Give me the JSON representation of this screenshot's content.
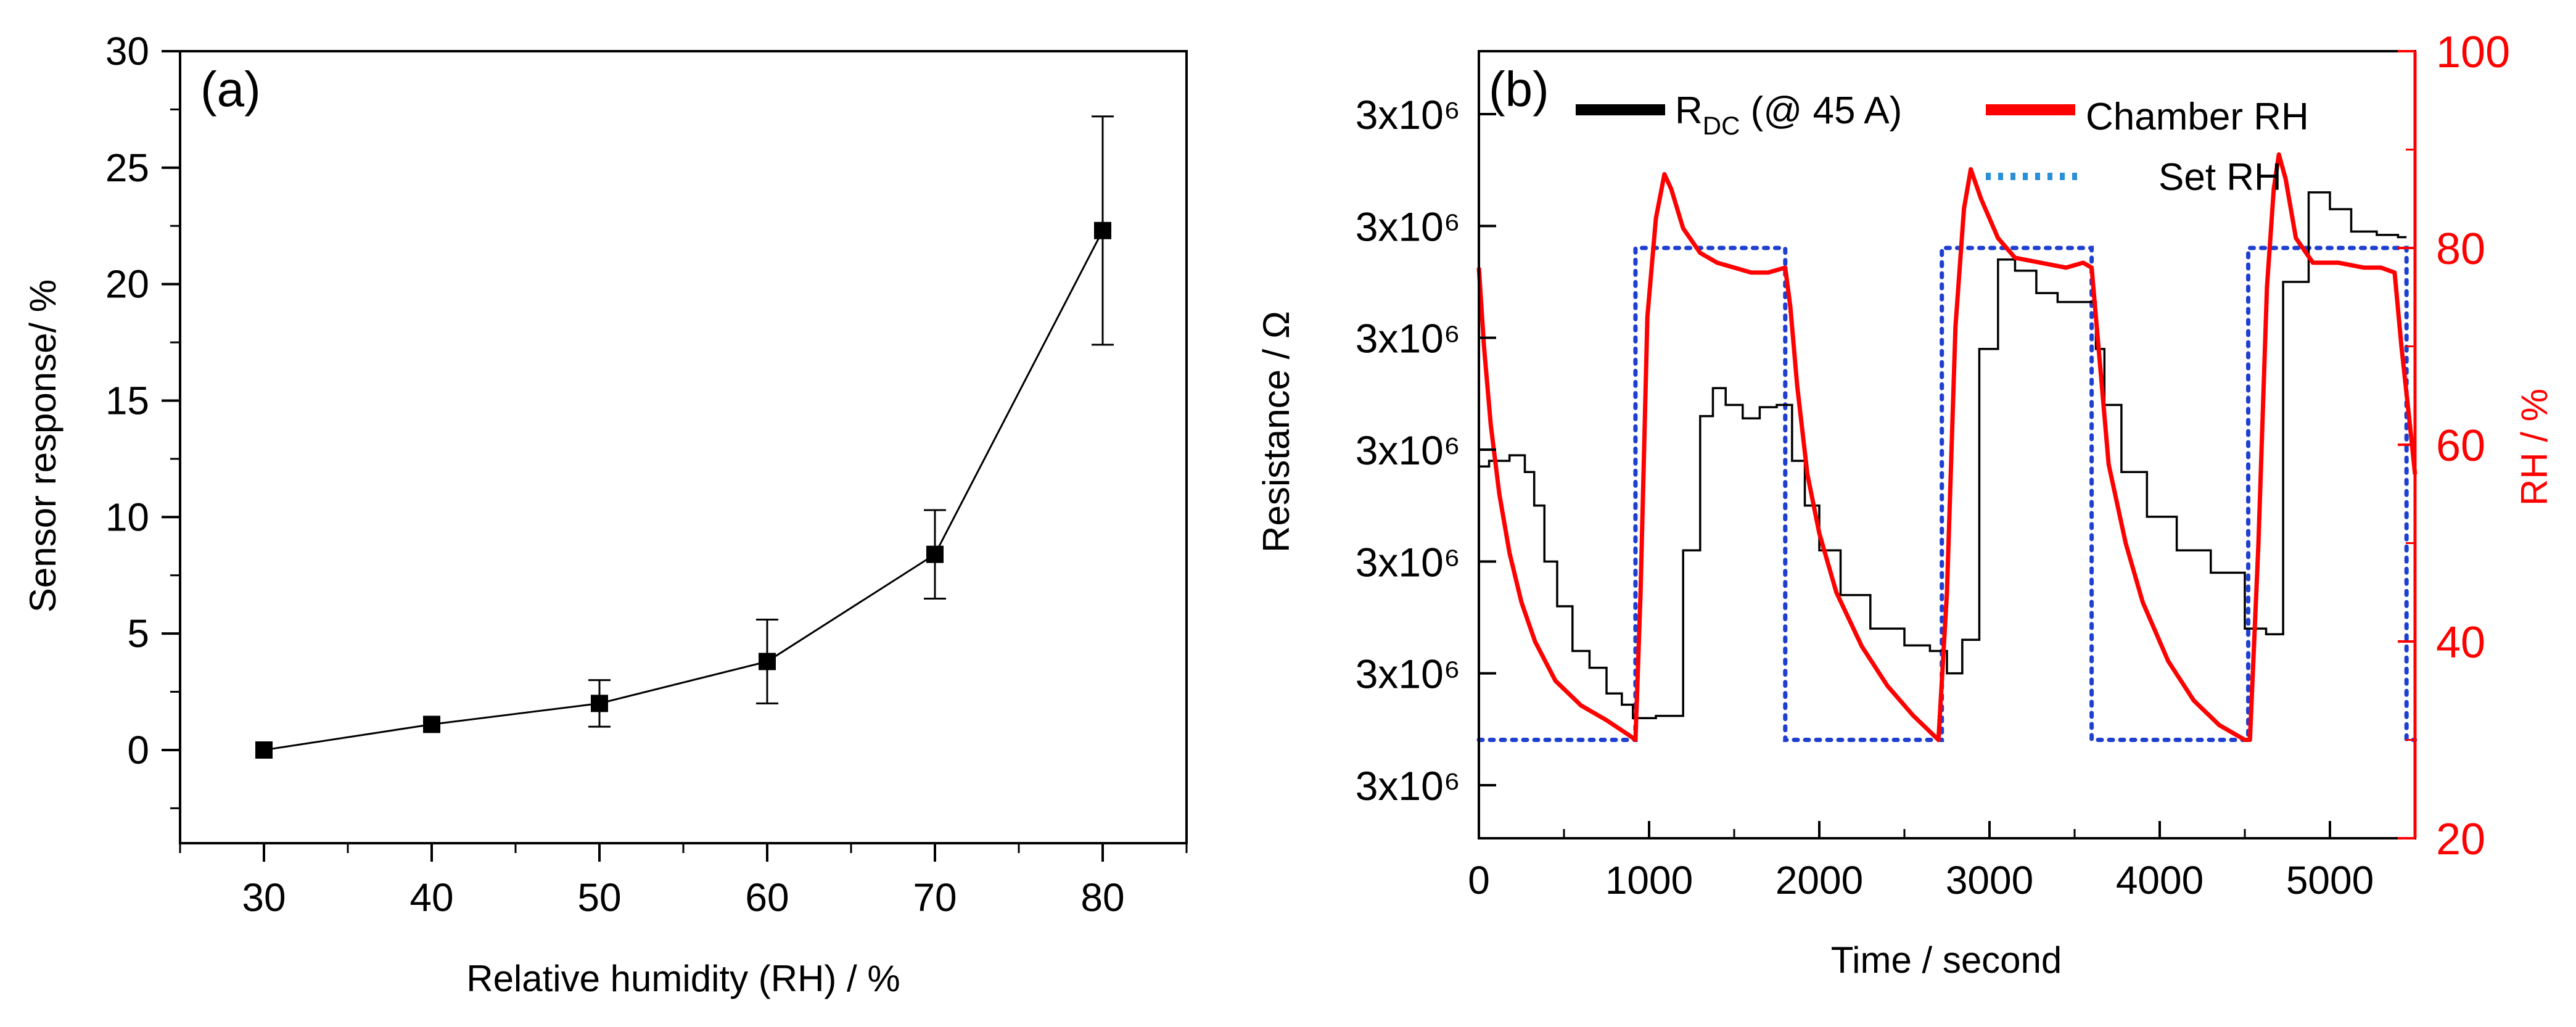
{
  "chart_data": [
    {
      "type": "scatter",
      "panel_label": "(a)",
      "title": "",
      "xlabel": "Relative humidity (RH) / %",
      "ylabel": "Sensor response/ %",
      "xlim": [
        25,
        85
      ],
      "ylim": [
        -4,
        30
      ],
      "xticks": [
        30,
        40,
        50,
        60,
        70,
        80
      ],
      "yticks": [
        0,
        5,
        10,
        15,
        20,
        25,
        30
      ],
      "grid": false,
      "series": [
        {
          "name": "Sensor response",
          "marker": "square",
          "line": true,
          "x": [
            30,
            40,
            50,
            60,
            70,
            80
          ],
          "y": [
            0.0,
            1.1,
            2.0,
            3.8,
            8.4,
            22.3
          ],
          "error": [
            0.0,
            0.0,
            1.0,
            1.8,
            1.9,
            4.9
          ]
        }
      ]
    },
    {
      "type": "line",
      "panel_label": "(b)",
      "title": "",
      "xlabel": "Time / second",
      "ylabel_left": "Resistance / Ω",
      "ylabel_right": "RH / %",
      "xlim": [
        0,
        5500
      ],
      "xticks": [
        0,
        1000,
        2000,
        3000,
        4000,
        5000
      ],
      "left_tick_labels": [
        "3x10⁶",
        "3x10⁶",
        "3x10⁶",
        "3x10⁶",
        "3x10⁶",
        "3x10⁶",
        "3x10⁶"
      ],
      "right_ylim": [
        20,
        100
      ],
      "right_yticks": [
        20,
        40,
        60,
        80,
        100
      ],
      "legend": {
        "placement": "top",
        "entries": [
          {
            "label_main": "R",
            "label_sub": "DC",
            "label_rest": " (@ 45 A)",
            "color": "#000000",
            "style": "solid"
          },
          {
            "label_main": "Chamber RH",
            "label_sub": "",
            "label_rest": "",
            "color": "#ff0000",
            "style": "solid"
          },
          {
            "label_main": "Set RH",
            "label_sub": "",
            "label_rest": "",
            "color": "#2a8fd6",
            "style": "dotted"
          }
        ]
      },
      "series": [
        {
          "name": "R_DC (@ 45 A)",
          "axis": "left",
          "color": "#000000",
          "note": "relative units on left axis (0 = bottom tick, 6 = top tick)",
          "points": [
            [
              0,
              2.85
            ],
            [
              120,
              2.9
            ],
            [
              240,
              2.95
            ],
            [
              300,
              2.8
            ],
            [
              350,
              2.5
            ],
            [
              420,
              2.0
            ],
            [
              500,
              1.6
            ],
            [
              600,
              1.2
            ],
            [
              700,
              1.05
            ],
            [
              800,
              0.82
            ],
            [
              880,
              0.72
            ],
            [
              930,
              0.6
            ],
            [
              1150,
              0.62
            ],
            [
              1250,
              2.1
            ],
            [
              1350,
              3.3
            ],
            [
              1400,
              3.55
            ],
            [
              1500,
              3.4
            ],
            [
              1600,
              3.28
            ],
            [
              1700,
              3.38
            ],
            [
              1800,
              3.4
            ],
            [
              1880,
              2.9
            ],
            [
              1950,
              2.5
            ],
            [
              2050,
              2.1
            ],
            [
              2200,
              1.7
            ],
            [
              2400,
              1.4
            ],
            [
              2600,
              1.25
            ],
            [
              2700,
              1.2
            ],
            [
              2800,
              1.0
            ],
            [
              2880,
              1.3
            ],
            [
              3000,
              3.9
            ],
            [
              3100,
              4.7
            ],
            [
              3200,
              4.6
            ],
            [
              3350,
              4.4
            ],
            [
              3450,
              4.32
            ],
            [
              3600,
              4.32
            ],
            [
              3650,
              3.9
            ],
            [
              3700,
              3.4
            ],
            [
              3850,
              2.8
            ],
            [
              4000,
              2.4
            ],
            [
              4200,
              2.1
            ],
            [
              4400,
              1.9
            ],
            [
              4600,
              1.4
            ],
            [
              4650,
              1.35
            ],
            [
              4800,
              4.5
            ],
            [
              4950,
              5.3
            ],
            [
              5050,
              5.15
            ],
            [
              5200,
              4.95
            ],
            [
              5350,
              4.92
            ],
            [
              5450,
              4.9
            ]
          ]
        },
        {
          "name": "Chamber RH",
          "axis": "right",
          "color": "#ff0000",
          "points": [
            [
              0,
              78
            ],
            [
              30,
              70
            ],
            [
              70,
              62
            ],
            [
              120,
              55
            ],
            [
              180,
              49
            ],
            [
              250,
              44
            ],
            [
              330,
              40
            ],
            [
              450,
              36
            ],
            [
              600,
              33.5
            ],
            [
              750,
              32
            ],
            [
              880,
              30.5
            ],
            [
              920,
              30
            ],
            [
              950,
              45
            ],
            [
              990,
              73
            ],
            [
              1040,
              83
            ],
            [
              1090,
              87.5
            ],
            [
              1130,
              86
            ],
            [
              1200,
              82
            ],
            [
              1300,
              79.5
            ],
            [
              1400,
              78.5
            ],
            [
              1500,
              78
            ],
            [
              1600,
              77.5
            ],
            [
              1700,
              77.5
            ],
            [
              1800,
              78
            ],
            [
              1830,
              74
            ],
            [
              1870,
              66
            ],
            [
              1930,
              57
            ],
            [
              2000,
              51
            ],
            [
              2100,
              45
            ],
            [
              2250,
              39.5
            ],
            [
              2400,
              35.5
            ],
            [
              2550,
              32.5
            ],
            [
              2700,
              30
            ],
            [
              2750,
              45
            ],
            [
              2800,
              72
            ],
            [
              2850,
              84
            ],
            [
              2890,
              88
            ],
            [
              2950,
              85
            ],
            [
              3050,
              81
            ],
            [
              3150,
              79
            ],
            [
              3300,
              78.5
            ],
            [
              3450,
              78
            ],
            [
              3550,
              78.5
            ],
            [
              3600,
              78
            ],
            [
              3650,
              68
            ],
            [
              3700,
              58
            ],
            [
              3800,
              50
            ],
            [
              3900,
              44
            ],
            [
              4050,
              38
            ],
            [
              4200,
              34
            ],
            [
              4350,
              31.5
            ],
            [
              4500,
              30
            ],
            [
              4530,
              30
            ],
            [
              4580,
              50
            ],
            [
              4630,
              76
            ],
            [
              4670,
              86
            ],
            [
              4700,
              89.5
            ],
            [
              4740,
              87
            ],
            [
              4800,
              81
            ],
            [
              4900,
              78.5
            ],
            [
              5050,
              78.5
            ],
            [
              5200,
              78
            ],
            [
              5300,
              78
            ],
            [
              5380,
              77.5
            ],
            [
              5420,
              70
            ],
            [
              5470,
              62
            ],
            [
              5500,
              57
            ]
          ]
        },
        {
          "name": "Set RH",
          "axis": "right",
          "color": "#1f3fd0",
          "points": [
            [
              0,
              30
            ],
            [
              920,
              30
            ],
            [
              920,
              80
            ],
            [
              1800,
              80
            ],
            [
              1800,
              30
            ],
            [
              2720,
              30
            ],
            [
              2720,
              80
            ],
            [
              3600,
              80
            ],
            [
              3600,
              30
            ],
            [
              4520,
              30
            ],
            [
              4520,
              80
            ],
            [
              5450,
              80
            ],
            [
              5450,
              30
            ],
            [
              5500,
              30
            ]
          ]
        }
      ]
    }
  ]
}
